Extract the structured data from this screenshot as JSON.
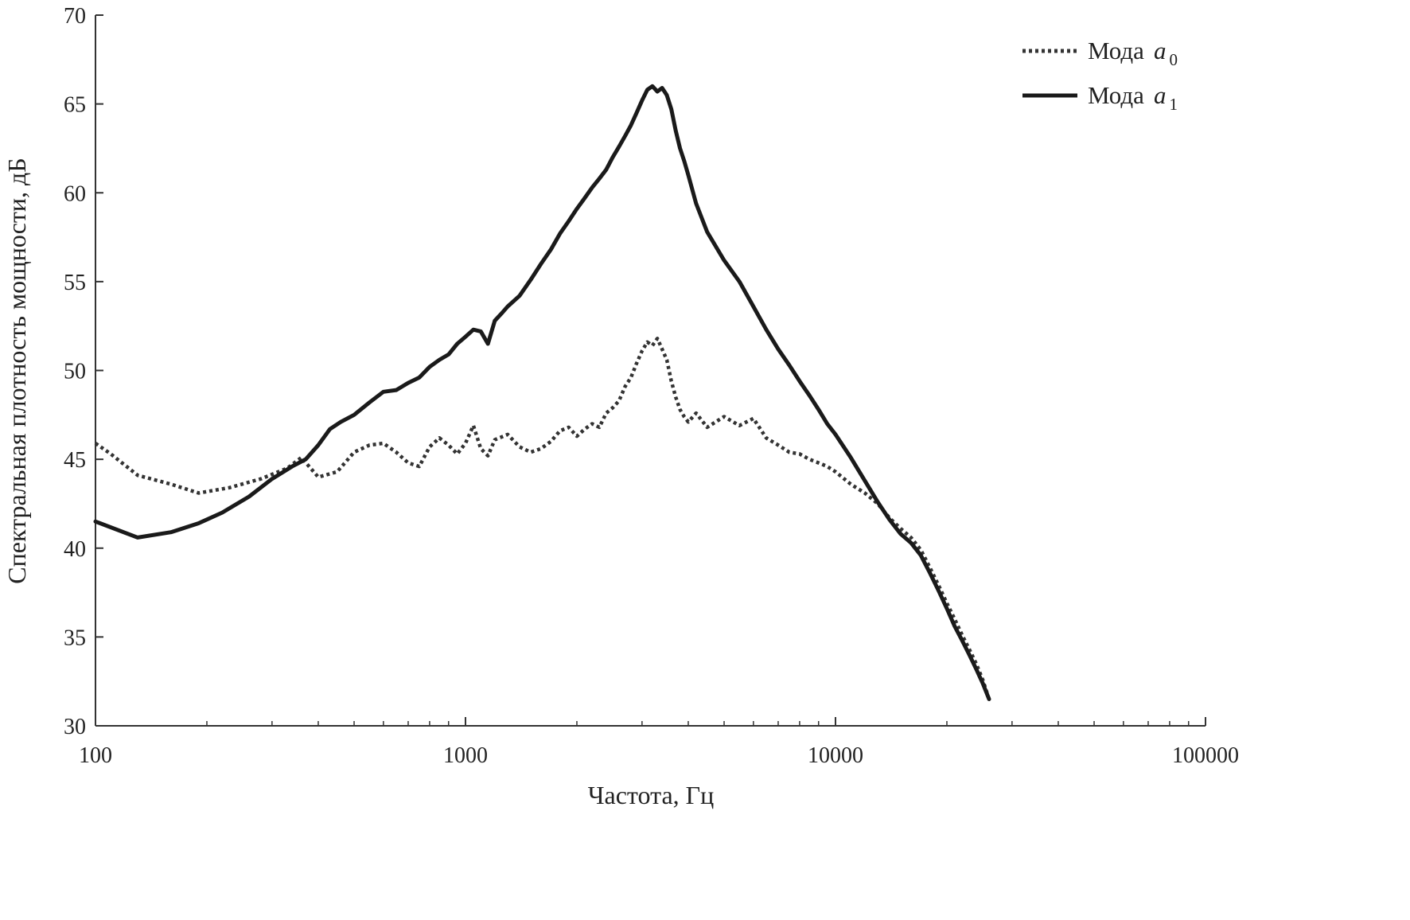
{
  "chart_data": {
    "type": "line",
    "xlabel": "Частота, Гц",
    "ylabel": "Спектральная плотность мощности, дБ",
    "x_scale": "log",
    "xlim": [
      100,
      100000
    ],
    "ylim": [
      30,
      70
    ],
    "x_ticks": [
      100,
      1000,
      10000,
      100000
    ],
    "x_tick_labels": [
      "100",
      "1000",
      "10000",
      "100000"
    ],
    "y_ticks": [
      30,
      35,
      40,
      45,
      50,
      55,
      60,
      65,
      70
    ],
    "y_tick_labels": [
      "30",
      "35",
      "40",
      "45",
      "50",
      "55",
      "60",
      "65",
      "70"
    ],
    "grid": false,
    "legend_position": "top-right",
    "series": [
      {
        "name": "Мода a0",
        "legend_prefix": "Мода",
        "legend_var": "a",
        "legend_sub": "0",
        "style": "dotted",
        "color": "#333333",
        "x": [
          100,
          110,
          130,
          160,
          190,
          230,
          280,
          330,
          360,
          400,
          450,
          500,
          550,
          600,
          650,
          700,
          750,
          800,
          850,
          900,
          950,
          1000,
          1050,
          1100,
          1150,
          1200,
          1300,
          1400,
          1500,
          1600,
          1700,
          1800,
          1900,
          2000,
          2100,
          2200,
          2300,
          2400,
          2500,
          2600,
          2700,
          2800,
          2900,
          3000,
          3100,
          3200,
          3300,
          3400,
          3500,
          3600,
          3700,
          3800,
          3900,
          4000,
          4200,
          4500,
          5000,
          5500,
          6000,
          6500,
          7000,
          7500,
          8000,
          8500,
          9000,
          9500,
          10000,
          11000,
          12000,
          13000,
          14000,
          15000,
          16000,
          17000,
          18000,
          19000,
          20000,
          21000,
          22000,
          23000,
          24000,
          25000,
          26000
        ],
        "values": [
          45.9,
          45.3,
          44.1,
          43.6,
          43.1,
          43.4,
          43.9,
          44.5,
          45.1,
          44.0,
          44.3,
          45.4,
          45.8,
          45.9,
          45.4,
          44.8,
          44.6,
          45.7,
          46.2,
          45.8,
          45.3,
          45.9,
          46.9,
          45.6,
          45.2,
          46.1,
          46.4,
          45.7,
          45.4,
          45.6,
          46.0,
          46.6,
          46.8,
          46.3,
          46.7,
          47.0,
          46.8,
          47.6,
          47.9,
          48.3,
          49.1,
          49.6,
          50.4,
          51.1,
          51.6,
          51.4,
          51.8,
          51.2,
          50.6,
          49.4,
          48.5,
          47.8,
          47.4,
          47.1,
          47.6,
          46.8,
          47.4,
          46.9,
          47.3,
          46.2,
          45.8,
          45.4,
          45.3,
          45.0,
          44.8,
          44.6,
          44.3,
          43.6,
          43.1,
          42.5,
          41.7,
          41.1,
          40.6,
          39.9,
          38.9,
          37.9,
          36.9,
          36.0,
          35.1,
          34.3,
          33.5,
          32.6,
          31.5
        ]
      },
      {
        "name": "Мода a1",
        "legend_prefix": "Мода",
        "legend_var": "a",
        "legend_sub": "1",
        "style": "solid",
        "color": "#1a1a1a",
        "x": [
          100,
          130,
          160,
          190,
          220,
          260,
          300,
          340,
          370,
          400,
          430,
          460,
          500,
          550,
          600,
          650,
          700,
          750,
          800,
          850,
          900,
          950,
          1000,
          1050,
          1100,
          1150,
          1200,
          1250,
          1300,
          1400,
          1500,
          1600,
          1700,
          1800,
          1900,
          2000,
          2100,
          2200,
          2300,
          2400,
          2500,
          2600,
          2700,
          2800,
          2900,
          3000,
          3100,
          3200,
          3300,
          3400,
          3500,
          3600,
          3700,
          3800,
          3900,
          4000,
          4200,
          4500,
          5000,
          5500,
          6000,
          6500,
          7000,
          7500,
          8000,
          8500,
          9000,
          9500,
          10000,
          11000,
          12000,
          13000,
          14000,
          15000,
          16000,
          17000,
          18000,
          19000,
          20000,
          21000,
          22000,
          23000,
          24000,
          25000,
          26000
        ],
        "values": [
          41.5,
          40.6,
          40.9,
          41.4,
          42.0,
          42.9,
          43.9,
          44.6,
          45.0,
          45.8,
          46.7,
          47.1,
          47.5,
          48.2,
          48.8,
          48.9,
          49.3,
          49.6,
          50.2,
          50.6,
          50.9,
          51.5,
          51.9,
          52.3,
          52.2,
          51.5,
          52.8,
          53.2,
          53.6,
          54.2,
          55.1,
          56.0,
          56.8,
          57.7,
          58.4,
          59.1,
          59.7,
          60.3,
          60.8,
          61.3,
          62.0,
          62.6,
          63.2,
          63.8,
          64.5,
          65.2,
          65.8,
          66.0,
          65.7,
          65.9,
          65.5,
          64.7,
          63.5,
          62.5,
          61.8,
          61.0,
          59.4,
          57.8,
          56.2,
          55.0,
          53.6,
          52.3,
          51.2,
          50.3,
          49.4,
          48.6,
          47.8,
          47.0,
          46.4,
          45.1,
          43.8,
          42.6,
          41.6,
          40.8,
          40.3,
          39.6,
          38.6,
          37.6,
          36.6,
          35.6,
          34.8,
          34.0,
          33.2,
          32.4,
          31.5
        ]
      }
    ]
  }
}
